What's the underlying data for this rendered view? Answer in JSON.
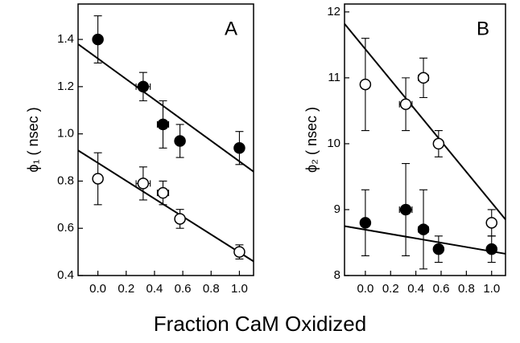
{
  "chart_data": [
    {
      "type": "scatter",
      "panel_label": "A",
      "ylabel": "ϕ₁ ( nsec )",
      "xlim": [
        -0.14,
        1.1
      ],
      "ylim": [
        0.4,
        1.55
      ],
      "xticks": [
        {
          "value": 0,
          "label": "0.0"
        },
        0.2,
        0.4,
        0.6,
        0.8,
        {
          "value": 1,
          "label": "1.0"
        }
      ],
      "yticks": [
        0.4,
        0.6,
        0.8,
        {
          "value": 1,
          "label": "1.0"
        },
        1.2,
        1.4
      ],
      "series": [
        {
          "color": "#000000",
          "filled": true,
          "x": [
            0,
            0.32,
            0.46,
            0.58,
            1.0
          ],
          "values": [
            1.4,
            1.2,
            1.04,
            0.97,
            0.94
          ],
          "yerr": [
            0.1,
            0.06,
            0.1,
            0.07,
            0.07
          ],
          "xerr": [
            0,
            0.05,
            0.04,
            0.02,
            0
          ]
        },
        {
          "color": "#000000",
          "filled": false,
          "x": [
            0,
            0.32,
            0.46,
            0.58,
            1.0
          ],
          "values": [
            0.81,
            0.79,
            0.75,
            0.64,
            0.5
          ],
          "yerr": [
            0.11,
            0.07,
            0.05,
            0.04,
            0.03
          ],
          "xerr": [
            0,
            0.05,
            0.04,
            0.02,
            0
          ]
        }
      ],
      "fits": [
        {
          "x": [
            -0.14,
            1.1
          ],
          "values": [
            1.38,
            0.84
          ]
        },
        {
          "x": [
            -0.14,
            1.1
          ],
          "values": [
            0.93,
            0.46
          ]
        }
      ]
    },
    {
      "type": "scatter",
      "panel_label": "B",
      "ylabel": "ϕ₂ ( nsec )",
      "xlim": [
        -0.165,
        1.11
      ],
      "ylim": [
        8,
        12.12
      ],
      "xticks": [
        {
          "value": 0,
          "label": "0.0"
        },
        0.2,
        0.4,
        0.6,
        0.8,
        {
          "value": 1,
          "label": "1.0"
        }
      ],
      "yticks": [
        8,
        9,
        10,
        11,
        12
      ],
      "series": [
        {
          "color": "#000000",
          "filled": false,
          "x": [
            0,
            0.32,
            0.46,
            0.58,
            1.0
          ],
          "values": [
            10.9,
            10.6,
            11.0,
            10.0,
            8.8
          ],
          "yerr": [
            0.7,
            0.4,
            0.3,
            0.2,
            0.2
          ],
          "xerr": [
            0,
            0.05,
            0.04,
            0.02,
            0
          ]
        },
        {
          "color": "#000000",
          "filled": true,
          "x": [
            0,
            0.32,
            0.46,
            0.58,
            1.0
          ],
          "values": [
            8.8,
            9.0,
            8.7,
            8.4,
            8.4
          ],
          "yerr": [
            0.5,
            0.7,
            0.6,
            0.2,
            0.2
          ],
          "xerr": [
            0,
            0.05,
            0.04,
            0.02,
            0
          ]
        }
      ],
      "fits": [
        {
          "x": [
            -0.165,
            1.11
          ],
          "values": [
            11.82,
            8.85
          ]
        },
        {
          "x": [
            -0.165,
            1.11
          ],
          "values": [
            8.75,
            8.33
          ]
        }
      ]
    }
  ],
  "xlabel": "Fraction CaM Oxidized"
}
